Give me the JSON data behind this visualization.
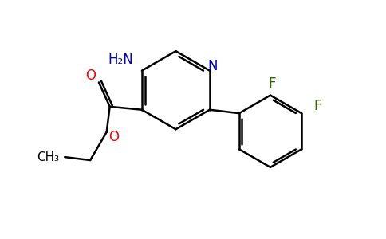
{
  "background_color": "#ffffff",
  "bond_color": "#000000",
  "N_color": "#0000cc",
  "O_color": "#ff0000",
  "F_color": "#336600",
  "NH2_color": "#0000cc",
  "lw": 1.8,
  "figsize": [
    4.84,
    3.0
  ],
  "dpi": 100,
  "xlim": [
    0,
    9.68
  ],
  "ylim": [
    0,
    6.0
  ]
}
